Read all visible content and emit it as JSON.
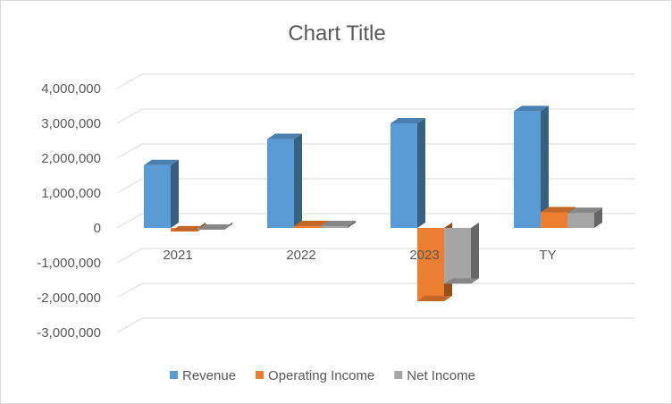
{
  "chart_data": {
    "type": "bar",
    "title": "Chart Title",
    "categories": [
      "2021",
      "2022",
      "2023",
      "TY"
    ],
    "series": [
      {
        "name": "Revenue",
        "color": "#5b9bd5",
        "values": [
          1800000,
          2550000,
          3000000,
          3350000
        ]
      },
      {
        "name": "Operating Income",
        "color": "#ed7d31",
        "values": [
          -100000,
          50000,
          -2100000,
          450000
        ]
      },
      {
        "name": "Net Income",
        "color": "#a5a5a5",
        "values": [
          -50000,
          50000,
          -1600000,
          430000
        ]
      }
    ],
    "yticks": [
      "4,000,000",
      "3,000,000",
      "2,000,000",
      "1,000,000",
      "0",
      "-1,000,000",
      "-2,000,000",
      "-3,000,000"
    ],
    "ytick_values": [
      4000000,
      3000000,
      2000000,
      1000000,
      0,
      -1000000,
      -2000000,
      -3000000
    ],
    "ylim": [
      -3000000,
      4000000
    ],
    "grid": true,
    "legend": "bottom",
    "style": "3d-clustered-column"
  }
}
